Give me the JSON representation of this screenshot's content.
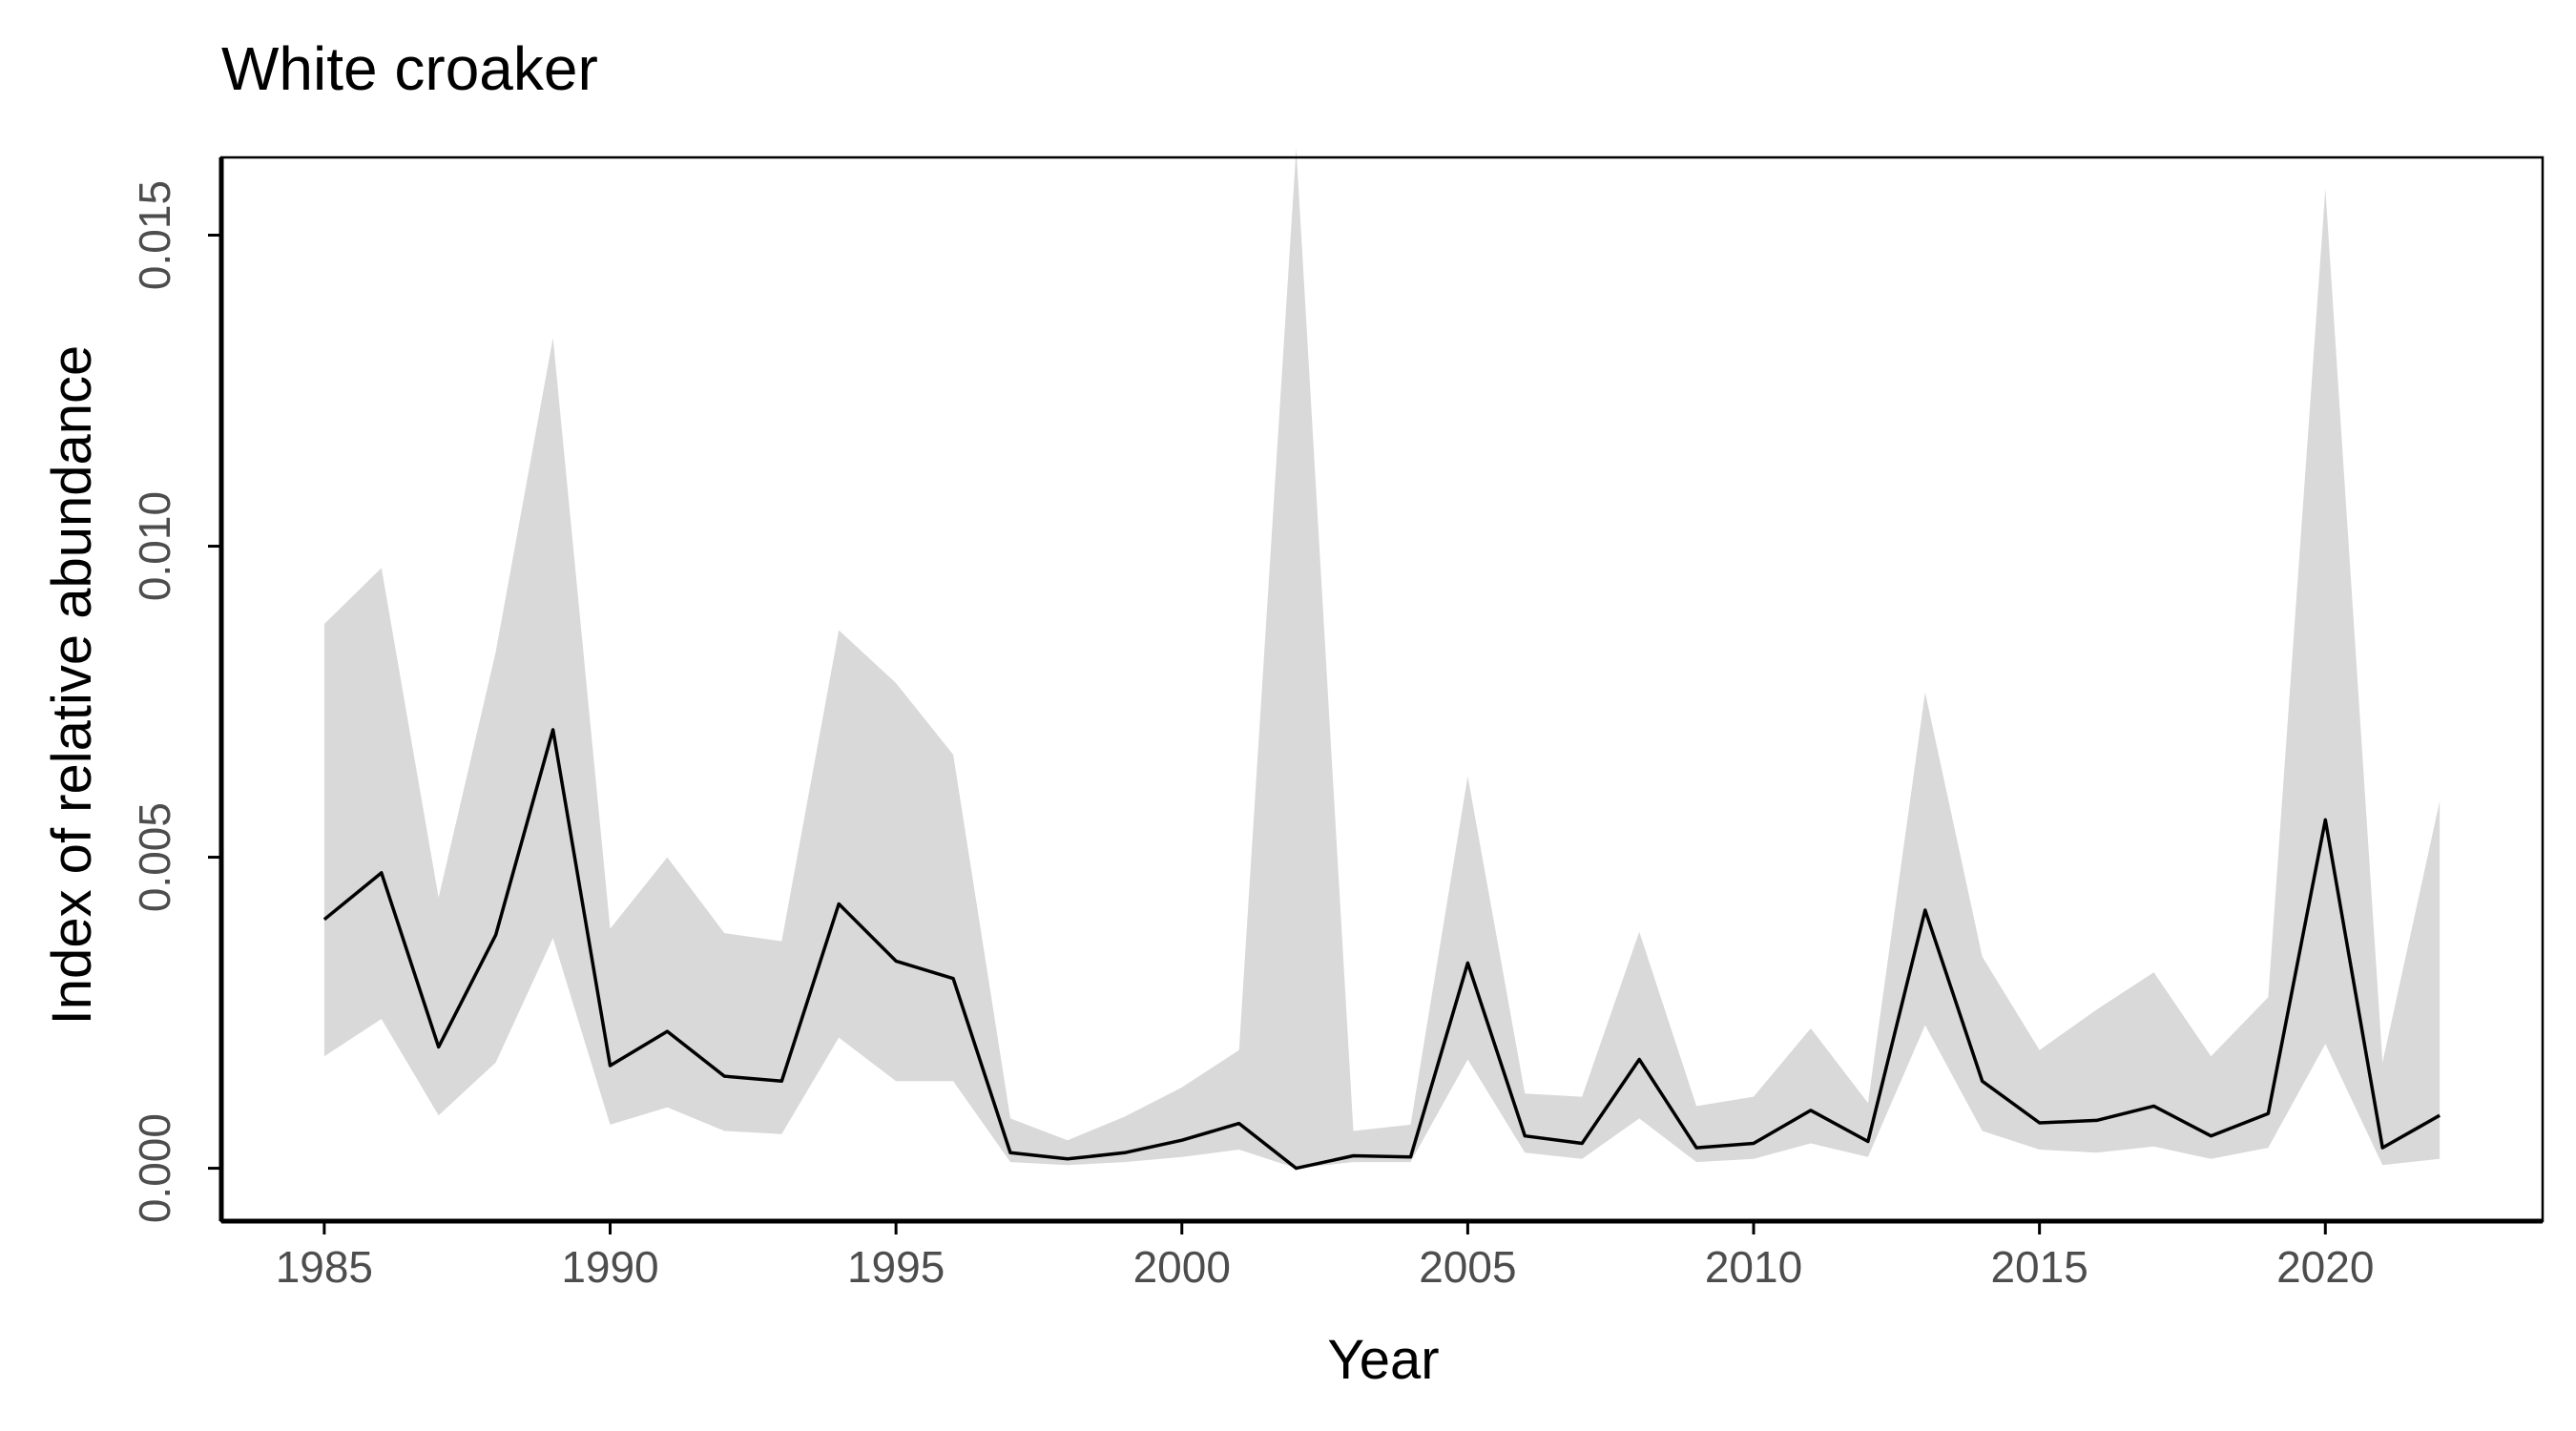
{
  "chart_data": {
    "type": "line",
    "title": "White croaker",
    "xlabel": "Year",
    "ylabel": "Index of relative abundance",
    "xlim": [
      1983.2,
      2023.8
    ],
    "ylim": [
      -0.00085,
      0.01625
    ],
    "x_ticks": [
      1985,
      1990,
      1995,
      2000,
      2005,
      2010,
      2015,
      2020
    ],
    "x_tick_labels": [
      "1985",
      "1990",
      "1995",
      "2000",
      "2005",
      "2010",
      "2015",
      "2020"
    ],
    "y_ticks": [
      0.0,
      0.005,
      0.01,
      0.015
    ],
    "y_tick_labels": [
      "0.000",
      "0.005",
      "0.010",
      "0.015"
    ],
    "grid": false,
    "legend": "none",
    "colors": {
      "line": "#000000",
      "ribbon": "#d9d9d9",
      "axis": "#000000",
      "tick_text": "#4d4d4d"
    },
    "x": [
      1985,
      1986,
      1987,
      1988,
      1989,
      1990,
      1991,
      1992,
      1993,
      1994,
      1995,
      1996,
      1997,
      1998,
      1999,
      2000,
      2001,
      2002,
      2003,
      2004,
      2005,
      2006,
      2007,
      2008,
      2009,
      2010,
      2011,
      2012,
      2013,
      2014,
      2015,
      2016,
      2017,
      2018,
      2019,
      2020,
      2021,
      2022
    ],
    "series": [
      {
        "values": [
          0.004,
          0.00475,
          0.00195,
          0.00375,
          0.00705,
          0.00165,
          0.0022,
          0.00148,
          0.0014,
          0.00425,
          0.00333,
          0.00305,
          0.00025,
          0.00015,
          0.00025,
          0.00045,
          0.00072,
          0.0,
          0.0002,
          0.00018,
          0.0033,
          0.00052,
          0.0004,
          0.00175,
          0.00033,
          0.0004,
          0.00093,
          0.00043,
          0.00415,
          0.0014,
          0.00073,
          0.00077,
          0.001,
          0.00052,
          0.00088,
          0.0056,
          0.00033,
          0.00085
        ],
        "lower": [
          0.0018,
          0.0024,
          0.00085,
          0.0017,
          0.0037,
          0.0007,
          0.00098,
          0.0006,
          0.00055,
          0.0021,
          0.0014,
          0.0014,
          0.0001,
          5e-05,
          0.0001,
          0.00018,
          0.0003,
          0.0,
          0.0001,
          0.0001,
          0.00175,
          0.00025,
          0.00015,
          0.0008,
          0.0001,
          0.00015,
          0.0004,
          0.00018,
          0.0023,
          0.0006,
          0.0003,
          0.00025,
          0.00035,
          0.00015,
          0.00033,
          0.002,
          5e-05,
          0.00015
        ],
        "upper": [
          0.00875,
          0.00965,
          0.00435,
          0.0083,
          0.01335,
          0.00385,
          0.005,
          0.00378,
          0.00365,
          0.00865,
          0.0078,
          0.00665,
          0.0008,
          0.00045,
          0.00083,
          0.0013,
          0.0019,
          0.0164,
          0.0006,
          0.0007,
          0.0063,
          0.0012,
          0.00115,
          0.0038,
          0.001,
          0.00115,
          0.00225,
          0.00105,
          0.00765,
          0.0034,
          0.0019,
          0.00255,
          0.00315,
          0.0018,
          0.00275,
          0.01575,
          0.0017,
          0.0059
        ]
      }
    ]
  }
}
